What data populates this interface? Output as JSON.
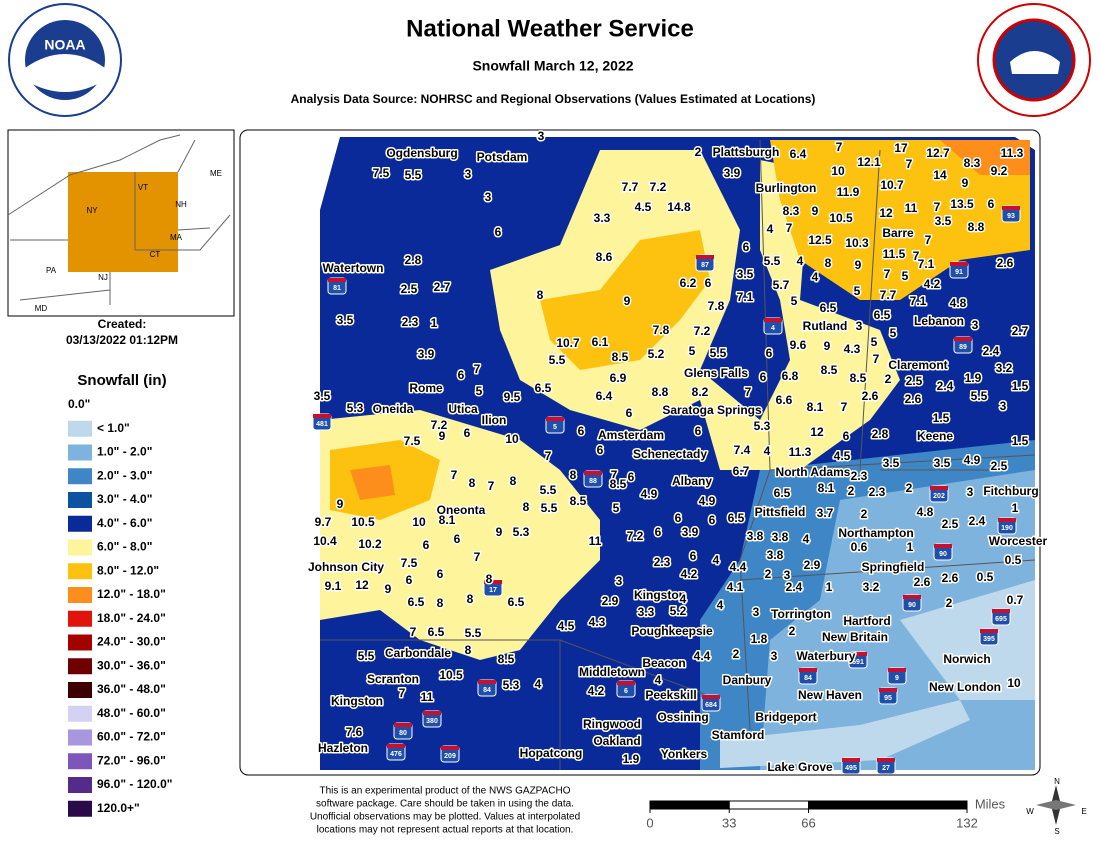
{
  "header": {
    "title": "National Weather Service",
    "subtitle": "Snowfall March 12, 2022",
    "source": "Analysis Data Source: NOHRSC and Regional Observations (Values Estimated at Locations)",
    "logo_text": "NOAA"
  },
  "inset": {
    "created_label": "Created:",
    "created": "03/13/2022 01:12PM",
    "states": [
      "ME",
      "VT",
      "NH",
      "NY",
      "MA",
      "CT",
      "NJ",
      "PA",
      "MD"
    ]
  },
  "legend": {
    "title": "Snowfall (in)",
    "items": [
      {
        "label": "0.0\""
      },
      {
        "label": "< 1.0\"",
        "color": "#bfd9ec"
      },
      {
        "label": "1.0\" - 2.0\"",
        "color": "#7eb3dd"
      },
      {
        "label": "2.0\" - 3.0\"",
        "color": "#3f86c7"
      },
      {
        "label": "3.0\" - 4.0\"",
        "color": "#0b52a3"
      },
      {
        "label": "4.0\" - 6.0\"",
        "color": "#0a2a9a"
      },
      {
        "label": "6.0\" - 8.0\"",
        "color": "#fdf49c"
      },
      {
        "label": "8.0\" - 12.0\"",
        "color": "#fdc20f"
      },
      {
        "label": "12.0\" - 18.0\"",
        "color": "#fd8e1b"
      },
      {
        "label": "18.0\" - 24.0\"",
        "color": "#e0140c"
      },
      {
        "label": "24.0\" - 30.0\"",
        "color": "#a40000"
      },
      {
        "label": "30.0\" - 36.0\"",
        "color": "#6e0000"
      },
      {
        "label": "36.0\" - 48.0\"",
        "color": "#3d0000"
      },
      {
        "label": "48.0\" - 60.0\"",
        "color": "#d4d2f3"
      },
      {
        "label": "60.0\" - 72.0\"",
        "color": "#a896de"
      },
      {
        "label": "72.0\" - 96.0\"",
        "color": "#7e56bb"
      },
      {
        "label": "96.0\" - 120.0\"",
        "color": "#552b8a"
      },
      {
        "label": "120.0+\"",
        "color": "#2a0a4b"
      }
    ]
  },
  "map": {
    "observations": [
      3,
      7.5,
      5.5,
      3,
      3,
      6,
      2,
      6.4,
      7,
      17,
      12.7,
      8.3,
      11.3,
      12.1,
      7,
      14,
      9,
      9.2,
      10,
      3.9,
      7.7,
      7.2,
      4.5,
      14.8,
      11.9,
      10.7,
      3.3,
      8.3,
      9,
      10.5,
      12,
      11,
      7,
      13.5,
      6,
      3.5,
      8.8,
      4,
      7,
      12.5,
      10.3,
      7,
      6,
      5.5,
      4,
      8,
      9,
      11.5,
      7,
      8.6,
      2.8,
      3.5,
      5.7,
      4,
      7,
      5,
      7.1,
      2.6,
      6.2,
      6,
      2.5,
      2.7,
      8,
      9,
      7.1,
      5,
      6.5,
      5,
      7.7,
      7.1,
      4.2,
      4.8,
      7.8,
      3.5,
      2.3,
      1,
      10.7,
      6.1,
      7.8,
      7.2,
      3,
      6.5,
      3,
      2.7,
      5,
      5.5,
      5.2,
      5,
      5.5,
      8.5,
      6,
      9.6,
      9,
      4.3,
      5,
      2.4,
      3.9,
      6,
      7,
      5,
      6.9,
      6.5,
      6.4,
      9.5,
      8.8,
      8.2,
      7,
      6,
      6.8,
      8.5,
      8.5,
      7,
      2,
      2.5,
      2.4,
      1.9,
      3.2,
      1.5,
      6.6,
      8.1,
      7,
      2.6,
      2.6,
      5.5,
      3,
      3.5,
      5.3,
      7.2,
      9,
      6,
      6,
      10,
      6,
      7,
      6,
      6,
      5.3,
      12,
      6,
      2.8,
      1.5,
      1.5,
      7.5,
      7.4,
      4,
      11.3,
      4.5,
      7,
      8,
      7,
      8,
      8,
      7,
      6,
      6.7,
      2.3,
      3.5,
      3.5,
      4.9,
      2.5,
      8.5,
      4.9,
      5.5,
      8.5,
      8,
      5.5,
      5,
      9,
      8.1,
      2,
      2.3,
      2,
      3,
      1,
      6.5,
      4.9,
      4.8,
      9.7,
      10.5,
      10,
      8.1,
      6,
      6.5,
      6,
      3.7,
      2,
      9,
      5.3,
      6,
      2.5,
      2.4,
      10.4,
      10.2,
      6,
      11,
      7.2,
      6,
      3.9,
      3.8,
      3.8,
      4,
      0.6,
      1,
      7,
      7.5,
      2.3,
      6,
      4,
      3.8,
      4.2,
      4.4,
      2,
      3,
      2.9,
      0.5,
      9.1,
      12,
      9,
      6,
      6,
      8,
      3,
      4.1,
      2.4,
      1,
      3.2,
      2.6,
      2.6,
      0.5,
      6.5,
      8,
      8,
      6.5,
      2.9,
      4,
      4,
      2,
      0.7,
      3.3,
      5.2,
      3,
      4.5,
      4.3,
      7,
      6.5,
      5.5,
      2,
      8,
      1.8,
      5.5,
      8.5,
      4.4,
      2,
      4,
      3,
      10.5,
      5.3,
      4,
      7,
      11,
      4.2,
      10,
      7.6,
      1.9
    ],
    "places": [
      "Ogdensburg",
      "Potsdam",
      "Plattsburgh",
      "Burlington",
      "Barre",
      "Watertown",
      "Rutland",
      "Lebanon",
      "Claremont",
      "Glens Falls",
      "Saratoga Springs",
      "Rome",
      "Oneida",
      "Utica",
      "Ilion",
      "Amsterdam",
      "Schenectady",
      "Albany",
      "North Adams",
      "Keene",
      "Fitchburg",
      "Pittsfield",
      "Oneonta",
      "Northampton",
      "Worcester",
      "Johnson City",
      "Springfield",
      "Kingston",
      "Torrington",
      "Hartford",
      "New Britain",
      "Poughkeepsie",
      "Norwich",
      "Carbondale",
      "Waterbury",
      "Beacon",
      "Middletown",
      "Scranton",
      "Danbury",
      "New Haven",
      "New London",
      "Kingston",
      "Peekskill",
      "Bridgeport",
      "Ossining",
      "Ringwood",
      "Stamford",
      "Oakland",
      "Hazleton",
      "Hopatcong",
      "Yonkers",
      "Lake Grove"
    ],
    "interstates": [
      81,
      87,
      91,
      89,
      93,
      4,
      481,
      5,
      88,
      202,
      190,
      90,
      90,
      17,
      84,
      6,
      684,
      84,
      691,
      395,
      695,
      9,
      95,
      380,
      80,
      476,
      209,
      495,
      27
    ]
  },
  "footer": {
    "disclaimer": [
      "This is an experimental product of the NWS GAZPACHO",
      "software package. Care should be taken in using the data.",
      "Unofficial observations may be plotted. Values at interpolated",
      "locations may not represent actual reports at that location."
    ],
    "scale": {
      "unit": "Miles",
      "ticks": [
        0,
        33,
        66,
        132
      ]
    },
    "compass": [
      "N",
      "E",
      "S",
      "W"
    ]
  }
}
